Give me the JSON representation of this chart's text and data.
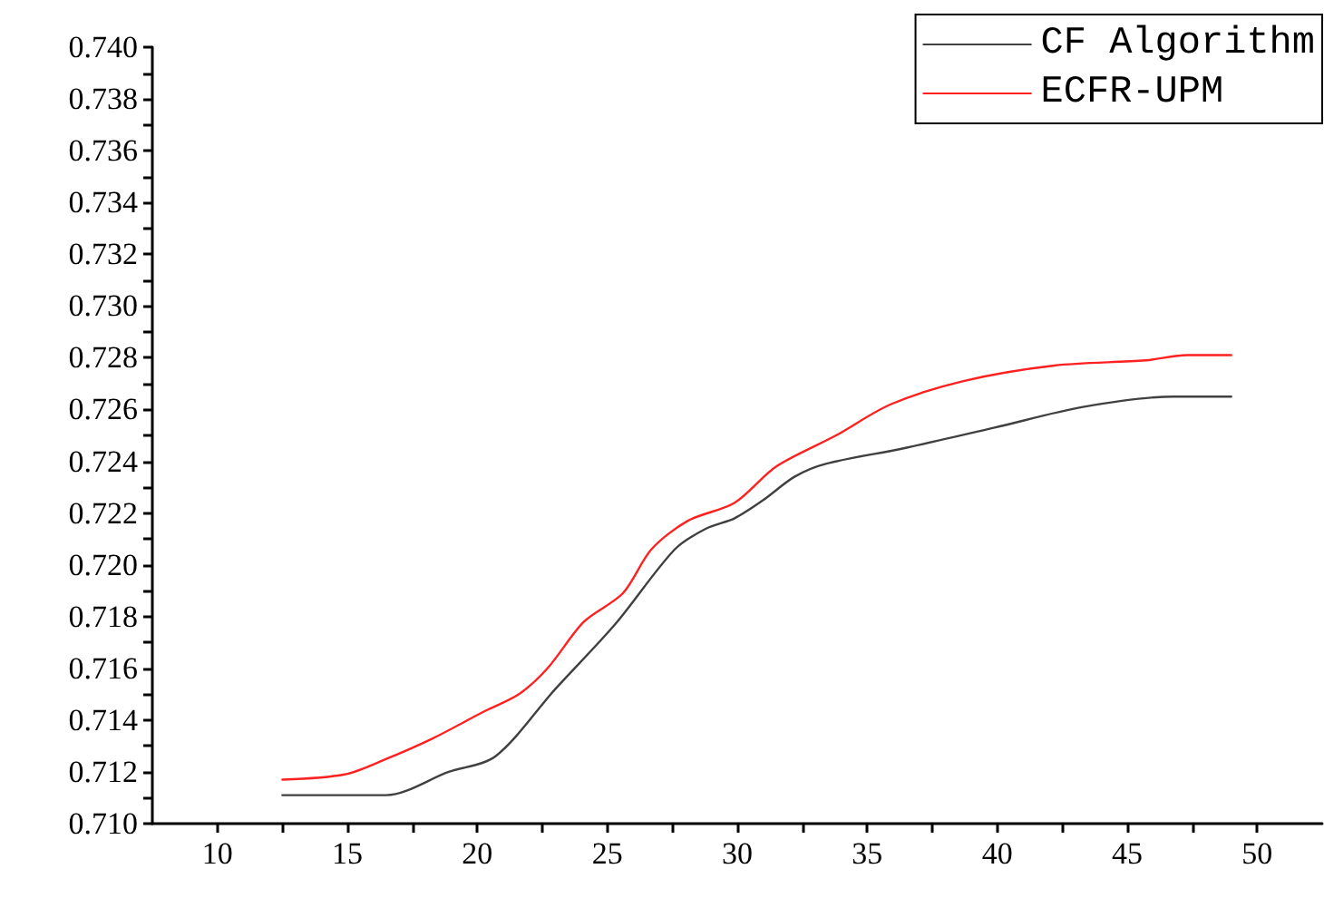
{
  "chart_data": {
    "type": "line",
    "xlim": [
      7.5,
      52.5
    ],
    "xticks": [
      10,
      {
        "value": 12.5,
        "label": null
      },
      15,
      {
        "value": 17.5,
        "label": null
      },
      20,
      {
        "value": 22.5,
        "label": null
      },
      25,
      {
        "value": 27.5,
        "label": null
      },
      30,
      {
        "value": 32.5,
        "label": null
      },
      35,
      {
        "value": 37.5,
        "label": null
      },
      40,
      {
        "value": 42.5,
        "label": null
      },
      45,
      {
        "value": 47.5,
        "label": null
      },
      50
    ],
    "ylim": [
      0.71,
      0.74
    ],
    "yticks": [
      {
        "value": 0.71,
        "label": "0.710"
      },
      {
        "value": 0.711,
        "label": null
      },
      {
        "value": 0.712,
        "label": "0.712"
      },
      {
        "value": 0.713,
        "label": null
      },
      {
        "value": 0.714,
        "label": "0.714"
      },
      {
        "value": 0.715,
        "label": null
      },
      {
        "value": 0.716,
        "label": "0.716"
      },
      {
        "value": 0.717,
        "label": null
      },
      {
        "value": 0.718,
        "label": "0.718"
      },
      {
        "value": 0.719,
        "label": null
      },
      {
        "value": 0.72,
        "label": "0.720"
      },
      {
        "value": 0.721,
        "label": null
      },
      {
        "value": 0.722,
        "label": "0.722"
      },
      {
        "value": 0.723,
        "label": null
      },
      {
        "value": 0.724,
        "label": "0.724"
      },
      {
        "value": 0.725,
        "label": null
      },
      {
        "value": 0.726,
        "label": "0.726"
      },
      {
        "value": 0.727,
        "label": null
      },
      {
        "value": 0.728,
        "label": "0.728"
      },
      {
        "value": 0.729,
        "label": null
      },
      {
        "value": 0.73,
        "label": "0.730"
      },
      {
        "value": 0.731,
        "label": null
      },
      {
        "value": 0.732,
        "label": "0.732"
      },
      {
        "value": 0.733,
        "label": null
      },
      {
        "value": 0.734,
        "label": "0.734"
      },
      {
        "value": 0.735,
        "label": null
      },
      {
        "value": 0.736,
        "label": "0.736"
      },
      {
        "value": 0.737,
        "label": null
      },
      {
        "value": 0.738,
        "label": "0.738"
      },
      {
        "value": 0.739,
        "label": null
      },
      {
        "value": 0.74,
        "label": "0.740"
      }
    ],
    "grid": false,
    "legend": "top right",
    "marker": "none",
    "line_style": "solid",
    "series": [
      {
        "name": "CF Algorithm",
        "color": "#404040",
        "x": [
          12.5,
          14.5,
          16.5,
          18.9,
          20.7,
          23,
          25.3,
          27.6,
          28.8,
          29.9,
          31,
          32.2,
          33.4,
          36.4,
          39.9,
          43.3,
          46.8,
          49
        ],
        "values": [
          0.7111,
          0.7111,
          0.7111,
          0.712,
          0.7126,
          0.7152,
          0.7177,
          0.7206,
          0.7214,
          0.7218,
          0.7225,
          0.7234,
          0.7239,
          0.7245,
          0.7253,
          0.7261,
          0.7265,
          0.7265
        ]
      },
      {
        "name": "ECFR-UPM",
        "color": "#ff2020",
        "x": [
          12.5,
          14.9,
          16.5,
          18.3,
          20.2,
          21.6,
          22.7,
          24.1,
          25.6,
          26.7,
          28.1,
          29.9,
          31.5,
          33.8,
          35.9,
          38.7,
          42.2,
          45.7,
          47.3,
          49
        ],
        "values": [
          0.7117,
          0.7119,
          0.7125,
          0.7133,
          0.7143,
          0.715,
          0.716,
          0.7178,
          0.7189,
          0.7206,
          0.7217,
          0.7224,
          0.7238,
          0.725,
          0.7262,
          0.7271,
          0.7277,
          0.7279,
          0.7281,
          0.7281
        ]
      }
    ]
  }
}
